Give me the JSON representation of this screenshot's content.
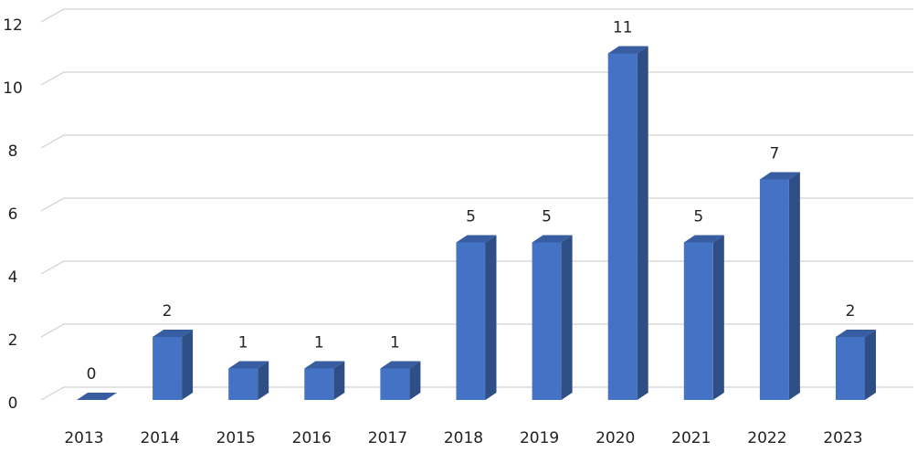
{
  "chart_data": {
    "type": "bar3d",
    "categories": [
      "2013",
      "2014",
      "2015",
      "2016",
      "2017",
      "2018",
      "2019",
      "2020",
      "2021",
      "2022",
      "2023"
    ],
    "values": [
      0,
      2,
      1,
      1,
      1,
      5,
      5,
      11,
      5,
      7,
      2
    ],
    "color": "#4472c4",
    "ylim": [
      0,
      12
    ],
    "yticks": [
      0,
      2,
      4,
      6,
      8,
      10,
      12
    ],
    "grid": true
  }
}
